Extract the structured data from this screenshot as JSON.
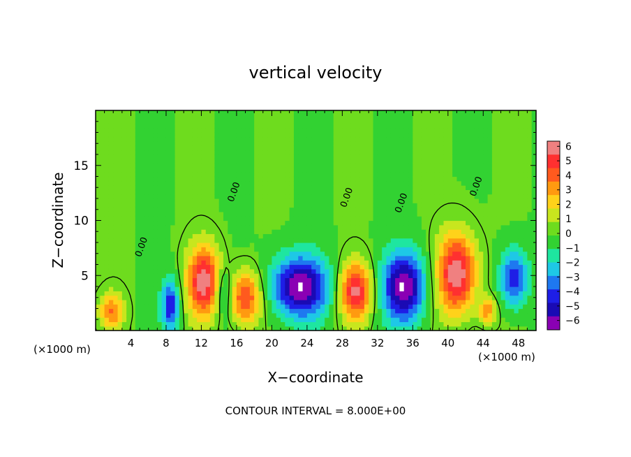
{
  "chart_data": {
    "type": "heatmap",
    "title": "vertical velocity",
    "xlabel": "X−coordinate",
    "ylabel": "Z−coordinate",
    "x_unit_left": "(×1000 m)",
    "x_unit_right": "(×1000 m)",
    "footer": "CONTOUR INTERVAL = 8.000E+00",
    "xlim": [
      0,
      50
    ],
    "ylim": [
      0,
      20
    ],
    "xticks": [
      4,
      8,
      12,
      16,
      20,
      24,
      28,
      32,
      36,
      40,
      44,
      48
    ],
    "yticks": [
      5,
      10,
      15
    ],
    "colorbar": {
      "min": -6,
      "max": 6,
      "tick_labels": [
        "6",
        "5",
        "4",
        "3",
        "2",
        "1",
        "0",
        "−1",
        "−2",
        "−3",
        "−4",
        "−5",
        "−6"
      ],
      "colors": [
        "#f08080",
        "#ff3030",
        "#ff5a1e",
        "#ff9a10",
        "#ffd21a",
        "#c8e61e",
        "#6edc1e",
        "#32d232",
        "#1ee6a0",
        "#1ec8e6",
        "#1e78f0",
        "#1e1ee6",
        "#1a0ab4",
        "#8a00b4"
      ]
    },
    "zero_contour_label": "0.00",
    "cells": [
      {
        "x": 1.8,
        "z": 1.8,
        "w": 0.55,
        "sx": 1.4,
        "sz": 1.6
      },
      {
        "x": 8.5,
        "z": 2.3,
        "w": -0.7,
        "sx": 1.0,
        "sz": 2.4
      },
      {
        "x": 12.3,
        "z": 4.5,
        "w": 0.95,
        "sx": 1.9,
        "sz": 3.2
      },
      {
        "x": 14.5,
        "z": 3.5,
        "w": -0.4,
        "sx": 1.0,
        "sz": 2.2
      },
      {
        "x": 17.0,
        "z": 3.0,
        "w": 0.75,
        "sx": 1.8,
        "sz": 2.4
      },
      {
        "x": 23.2,
        "z": 4.0,
        "w": -1.0,
        "sx": 3.2,
        "sz": 2.8
      },
      {
        "x": 29.5,
        "z": 3.6,
        "w": 0.9,
        "sx": 1.8,
        "sz": 2.6
      },
      {
        "x": 35.0,
        "z": 4.0,
        "w": -1.0,
        "sx": 2.4,
        "sz": 3.2
      },
      {
        "x": 41.0,
        "z": 5.2,
        "w": 1.0,
        "sx": 2.2,
        "sz": 3.6
      },
      {
        "x": 44.5,
        "z": 1.8,
        "w": 0.5,
        "sx": 1.0,
        "sz": 1.2
      },
      {
        "x": 47.5,
        "z": 4.8,
        "w": -0.7,
        "sx": 1.6,
        "sz": 2.6
      }
    ]
  }
}
